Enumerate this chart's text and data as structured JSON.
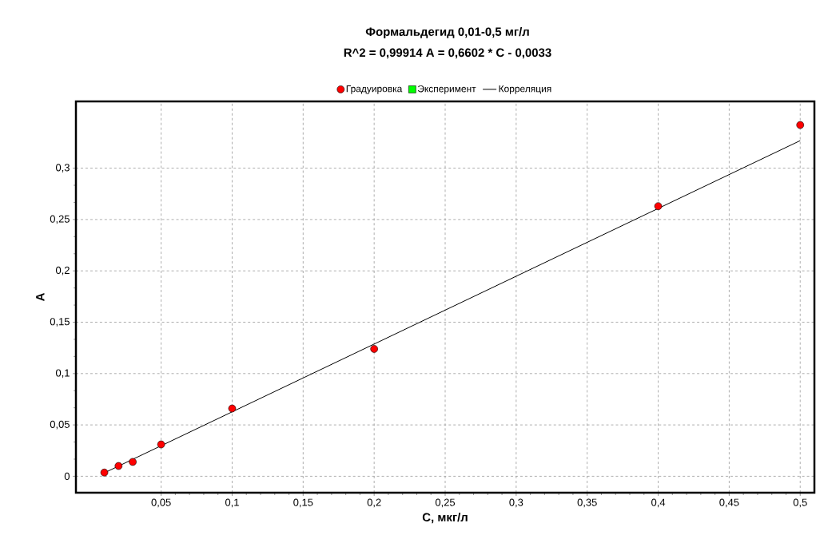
{
  "chart_data": {
    "type": "scatter",
    "title": "Формальдегид 0,01-0,5 мг/л",
    "subtitle": "R^2 = 0,99914     A = 0,6602 * C - 0,0033",
    "xlabel": "C, мкг/л",
    "ylabel": "A",
    "series": [
      {
        "name": "Градуировка",
        "marker": "circle",
        "color": "#ff0000",
        "x": [
          0.01,
          0.02,
          0.03,
          0.05,
          0.1,
          0.2,
          0.4,
          0.5
        ],
        "values": [
          0.0036,
          0.01,
          0.014,
          0.031,
          0.066,
          0.124,
          0.263,
          0.342
        ]
      },
      {
        "name": "Эксперимент",
        "marker": "square",
        "color": "#00ff00"
      },
      {
        "name": "Корреляция",
        "type": "line",
        "marker": "none",
        "line_style": "solid",
        "color": "#000000",
        "x": [
          0.01,
          0.5
        ],
        "values": [
          0.0033,
          0.3268
        ]
      }
    ],
    "xlim": [
      -0.01,
      0.51
    ],
    "ylim": [
      -0.016,
      0.365
    ],
    "xticks": [
      {
        "value": 0.05,
        "label": "0,05"
      },
      {
        "value": 0.1,
        "label": "0,1"
      },
      {
        "value": 0.15,
        "label": "0,15"
      },
      {
        "value": 0.2,
        "label": "0,2"
      },
      {
        "value": 0.25,
        "label": "0,25"
      },
      {
        "value": 0.3,
        "label": "0,3"
      },
      {
        "value": 0.35,
        "label": "0,35"
      },
      {
        "value": 0.4,
        "label": "0,4"
      },
      {
        "value": 0.45,
        "label": "0,45"
      },
      {
        "value": 0.5,
        "label": "0,5"
      }
    ],
    "yticks": [
      0,
      {
        "value": 0.05,
        "label": "0,05"
      },
      {
        "value": 0.1,
        "label": "0,1"
      },
      {
        "value": 0.15,
        "label": "0,15"
      },
      {
        "value": 0.2,
        "label": "0,2"
      },
      {
        "value": 0.25,
        "label": "0,25"
      },
      {
        "value": 0.3,
        "label": "0,3"
      }
    ],
    "grid": true,
    "legend": "top"
  }
}
